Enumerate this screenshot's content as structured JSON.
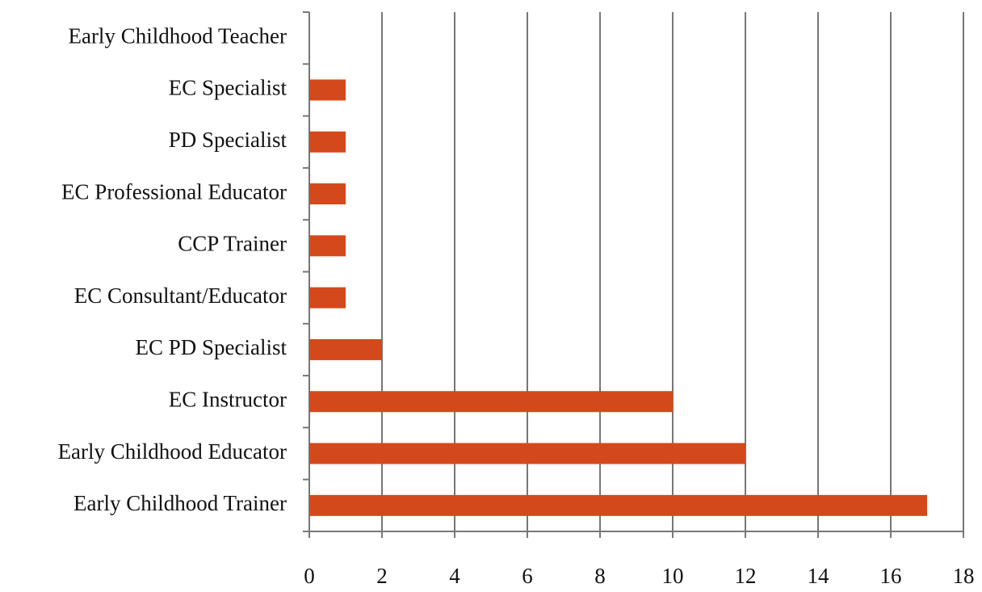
{
  "chart_data": {
    "type": "barh",
    "categories": [
      "Early Childhood Teacher",
      "EC Specialist",
      "PD Specialist",
      "EC Professional Educator",
      "CCP Trainer",
      "EC Consultant/Educator",
      "EC PD Specialist",
      "EC Instructor",
      "Early Childhood Educator",
      "Early Childhood Trainer"
    ],
    "values": [
      0,
      1,
      1,
      1,
      1,
      1,
      2,
      10,
      12,
      17
    ],
    "color": "#d4491b",
    "xlim": [
      0,
      18
    ],
    "xticks": [
      0,
      2,
      4,
      6,
      8,
      10,
      12,
      14,
      16,
      18
    ],
    "grid": true
  }
}
